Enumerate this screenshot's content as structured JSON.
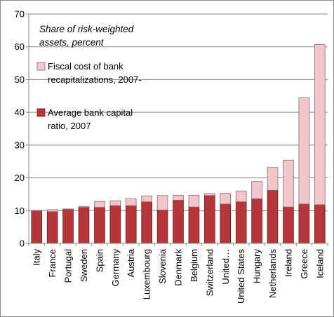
{
  "chart_data": {
    "type": "bar",
    "stacked": true,
    "title": "",
    "xlabel": "",
    "ylabel": "",
    "annotation": [
      "Share of risk-weighted",
      "assets, percent"
    ],
    "ylim": [
      0,
      70
    ],
    "yticks": [
      0,
      10,
      20,
      30,
      40,
      50,
      60,
      70
    ],
    "grid": true,
    "legend_placement": "upper-left",
    "categories": [
      "Italy",
      "France",
      "Portugal",
      "Sweden",
      "Spain",
      "Germany",
      "Austria",
      "Luxembourg",
      "Slovenia",
      "Denmark",
      "Belgium",
      "Switzerland",
      "United…",
      "United States",
      "Hungary",
      "Netherlands",
      "Ireland",
      "Greece",
      "Iceland"
    ],
    "series": [
      {
        "name": "Average bank capital ratio, 2007",
        "name_lines": [
          "Average bank capital",
          "ratio, 2007"
        ],
        "color": "#b5373a",
        "values": [
          9.9,
          9.7,
          10.4,
          11.0,
          11.0,
          11.5,
          11.5,
          12.7,
          10.2,
          13.2,
          11.1,
          14.6,
          12.0,
          12.7,
          13.6,
          16.2,
          11.1,
          12.0,
          11.8
        ]
      },
      {
        "name": "Fiscal cost of bank recapitalizations, 2007-",
        "name_lines": [
          "Fiscal cost of bank",
          "recapitalizations, 2007-"
        ],
        "color": "#f2c6cb",
        "values": [
          0.2,
          0.6,
          0.1,
          0.3,
          1.8,
          1.5,
          2.1,
          1.8,
          4.4,
          1.5,
          3.6,
          0.6,
          3.3,
          3.3,
          5.3,
          7.0,
          14.3,
          32.4,
          48.9
        ]
      }
    ]
  }
}
